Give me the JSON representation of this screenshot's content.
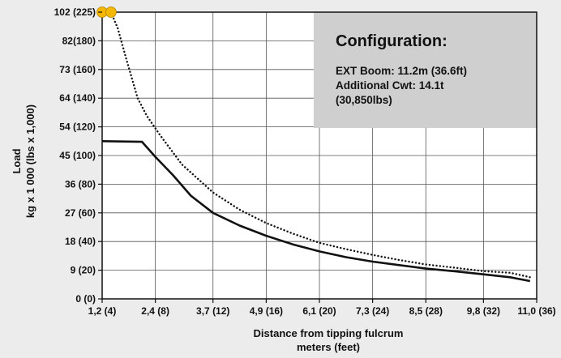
{
  "chart_data": {
    "type": "line",
    "xlabel": [
      "Distance from tipping fulcrum",
      "meters (feet)"
    ],
    "ylabel": [
      "Load",
      "kg x 1 000 (lbs x 1,000)"
    ],
    "xlim": [
      1.2,
      11.0
    ],
    "x_ticks": [
      {
        "value": 1.2,
        "label": "1,2 (4)"
      },
      {
        "value": 2.4,
        "label": "2,4 (8)"
      },
      {
        "value": 3.7,
        "label": "3,7 (12)"
      },
      {
        "value": 4.9,
        "label": "4,9 (16)"
      },
      {
        "value": 6.1,
        "label": "6,1 (20)"
      },
      {
        "value": 7.3,
        "label": "7,3 (24)"
      },
      {
        "value": 8.5,
        "label": "8,5 (28)"
      },
      {
        "value": 9.8,
        "label": "9,8 (32)"
      },
      {
        "value": 11.0,
        "label": "11,0 (36)"
      }
    ],
    "y_ticks": [
      {
        "value": 0,
        "label": "0 (0)"
      },
      {
        "value": 9,
        "label": "9 (20)"
      },
      {
        "value": 18,
        "label": "18 (40)"
      },
      {
        "value": 27,
        "label": "27 (60)"
      },
      {
        "value": 36,
        "label": "36 (80)"
      },
      {
        "value": 45,
        "label": "45 (100)"
      },
      {
        "value": 54,
        "label": "54 (120)"
      },
      {
        "value": 64,
        "label": "64 (140)"
      },
      {
        "value": 73,
        "label": "73 (160)"
      },
      {
        "value": 82,
        "label": "82(180)"
      },
      {
        "value": 102,
        "label": "102 (225)"
      }
    ],
    "grid": true,
    "series": [
      {
        "style": "solid",
        "color": "#111111",
        "points": [
          [
            1.2,
            49.5
          ],
          [
            2.1,
            49.3
          ],
          [
            2.4,
            44.6
          ],
          [
            2.8,
            38.8
          ],
          [
            3.2,
            32.4
          ],
          [
            3.7,
            27.0
          ],
          [
            4.3,
            23.0
          ],
          [
            4.9,
            19.8
          ],
          [
            5.5,
            17.1
          ],
          [
            6.1,
            14.9
          ],
          [
            6.7,
            13.1
          ],
          [
            7.3,
            11.7
          ],
          [
            7.9,
            10.6
          ],
          [
            8.5,
            9.5
          ],
          [
            9.2,
            8.6
          ],
          [
            9.8,
            7.7
          ],
          [
            10.4,
            6.8
          ],
          [
            10.85,
            5.6
          ]
        ]
      },
      {
        "style": "dotted",
        "color": "#111111",
        "points": [
          [
            1.4,
            102
          ],
          [
            1.55,
            91
          ],
          [
            1.75,
            76
          ],
          [
            2.0,
            64
          ],
          [
            2.2,
            58
          ],
          [
            2.5,
            51.5
          ],
          [
            3.0,
            42.2
          ],
          [
            3.7,
            33.4
          ],
          [
            4.3,
            28.0
          ],
          [
            4.9,
            23.8
          ],
          [
            5.5,
            20.5
          ],
          [
            6.1,
            17.6
          ],
          [
            6.7,
            15.6
          ],
          [
            7.3,
            13.8
          ],
          [
            7.9,
            12.2
          ],
          [
            8.5,
            10.8
          ],
          [
            9.2,
            9.7
          ],
          [
            9.8,
            8.7
          ],
          [
            10.4,
            8.2
          ],
          [
            10.85,
            6.8
          ]
        ]
      }
    ],
    "max_capacity_marker": {
      "x_start": 1.2,
      "x_end": 1.4,
      "value": 102,
      "color": "#f5b800"
    }
  },
  "configuration": {
    "title": "Configuration:",
    "lines": [
      "EXT Boom: 11.2m (36.6ft)",
      "Additional Cwt: 14.1t",
      "(30,850lbs)"
    ]
  }
}
